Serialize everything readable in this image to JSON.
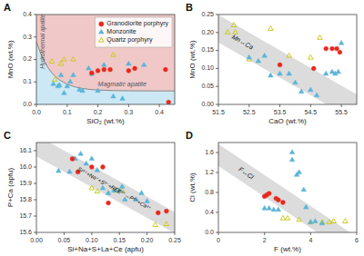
{
  "chart_data": [
    {
      "type": "scatter",
      "title": "A",
      "x_label": "SiO₂ (wt.%)",
      "y_label": "MnO (wt.%)",
      "xlim": [
        0,
        0.45
      ],
      "ylim": [
        0,
        0.4
      ],
      "xticks": [
        {
          "value": 0,
          "label": "0.0"
        },
        0.1,
        0.2,
        0.3,
        0.4
      ],
      "yticks": [
        {
          "value": 0,
          "label": "0.0"
        },
        0.1,
        0.2,
        0.3,
        0.4
      ],
      "legend": "upper right",
      "regions": [
        {
          "name": "Hydrothermal apatite",
          "color": "#f0c8c8"
        },
        {
          "name": "Magmatic apatite",
          "color": "#cce8f4"
        }
      ],
      "boundary": {
        "color": "#888888",
        "x": [
          0,
          0.0125,
          0.025,
          0.0375,
          0.05,
          0.0625,
          0.075,
          0.1,
          0.125,
          0.15,
          0.175,
          0.2,
          0.25,
          0.3,
          0.35,
          0.4,
          0.45
        ],
        "y": [
          0.28,
          0.2313,
          0.1934,
          0.1639,
          0.1409,
          0.123,
          0.1091,
          0.0898,
          0.0781,
          0.071,
          0.0666,
          0.064,
          0.0615,
          0.0605,
          0.0602,
          0.0601,
          0.06
        ]
      },
      "series": [
        {
          "name": "Granodiorite porphyry",
          "color": "#e8281e",
          "marker": "circle",
          "x": [
            0.18,
            0.2,
            0.22,
            0.24,
            0.3,
            0.32,
            0.42,
            0.43
          ],
          "values": [
            0.14,
            0.15,
            0.155,
            0.155,
            0.15,
            0.16,
            0.155,
            0.01
          ]
        },
        {
          "name": "Monzonite",
          "color": "#5ab4d8",
          "marker": "triangle",
          "x": [
            0.055,
            0.07,
            0.075,
            0.08,
            0.09,
            0.1,
            0.11,
            0.12,
            0.14,
            0.15,
            0.17,
            0.18,
            0.2,
            0.22,
            0.25,
            0.28,
            0.3,
            0.35
          ],
          "values": [
            0.09,
            0.08,
            0.085,
            0.13,
            0.05,
            0.08,
            0.1,
            0.13,
            0.065,
            0.06,
            0.16,
            0.135,
            0.06,
            0.175,
            0.035,
            0.025,
            0.18,
            0.175
          ]
        },
        {
          "name": "Quartz porphyry",
          "color": "#cccc22",
          "marker": "triangle-open",
          "x": [
            0.05,
            0.06,
            0.08,
            0.09,
            0.12,
            0.25
          ],
          "values": [
            0.19,
            0.11,
            0.18,
            0.2,
            0.2,
            0.22
          ]
        }
      ]
    },
    {
      "type": "scatter",
      "title": "B",
      "x_label": "CaO (wt.%)",
      "y_label": "MnO (wt.%)",
      "xlim": [
        51.5,
        56.0
      ],
      "ylim": [
        0,
        0.25
      ],
      "xticks": [
        51.5,
        52.5,
        53.5,
        54.5,
        55.5
      ],
      "yticks": [
        {
          "value": 0,
          "label": "0.00"
        },
        0.05,
        {
          "value": 0.1,
          "label": "0.10"
        },
        0.15,
        {
          "value": 0.2,
          "label": "0.20"
        },
        0.25
      ],
      "band": {
        "color": "#d3d3d3",
        "x": [
          51.5,
          56.0
        ],
        "lower": [
          0.1725,
          -0.048
        ],
        "upper": [
          0.2485,
          0.028
        ]
      },
      "annotations": [
        "Mn↔Ca"
      ],
      "series": [
        {
          "name": "Granodiorite porphyry",
          "color": "#e8281e",
          "marker": "circle",
          "x": [
            53.5,
            54.6,
            55.0,
            55.2,
            55.35,
            55.45
          ],
          "values": [
            0.11,
            0.1,
            0.155,
            0.155,
            0.155,
            0.145
          ]
        },
        {
          "name": "Monzonite",
          "color": "#5ab4d8",
          "marker": "triangle",
          "x": [
            52.5,
            52.8,
            53.0,
            53.2,
            53.5,
            53.8,
            54.0,
            54.2,
            54.5,
            54.7,
            55.0,
            55.2,
            55.3,
            55.4,
            55.5
          ],
          "values": [
            0.13,
            0.12,
            0.135,
            0.08,
            0.085,
            0.085,
            0.06,
            0.035,
            0.04,
            0.025,
            0.085,
            0.09,
            0.085,
            0.09,
            0.17
          ]
        },
        {
          "name": "Quartz porphyry",
          "color": "#cccc22",
          "marker": "triangle-open",
          "x": [
            51.8,
            52.0,
            52.05,
            52.5,
            53.2,
            53.8,
            54.5,
            54.8
          ],
          "values": [
            0.2,
            0.22,
            0.2,
            0.125,
            0.21,
            0.135,
            0.13,
            0.185
          ]
        }
      ]
    },
    {
      "type": "scatter",
      "title": "C",
      "x_label": "Si+Na+S+La+Ce (apfu)",
      "y_label": "P+Ca (apfu)",
      "xlim": [
        0,
        0.25
      ],
      "ylim": [
        15.6,
        16.15
      ],
      "xticks": [
        {
          "value": 0,
          "label": "0.00"
        },
        0.05,
        {
          "value": 0.1,
          "label": "0.10"
        },
        0.15,
        {
          "value": 0.2,
          "label": "0.20"
        },
        0.25
      ],
      "yticks": [
        15.6,
        15.7,
        15.8,
        15.9,
        {
          "value": 16.0,
          "label": "16.0"
        },
        16.1
      ],
      "band": {
        "color": "#d3d3d3",
        "x": [
          0,
          0.25
        ],
        "lower": [
          16.065,
          15.595
        ],
        "upper": [
          16.195,
          15.725
        ]
      },
      "annotations": [
        "Si⁴⁺+Na⁺+S²⁻+REE³⁺→P⁵⁺+Ca²⁺"
      ],
      "series": [
        {
          "name": "Granodiorite porphyry",
          "color": "#e8281e",
          "marker": "circle",
          "x": [
            0.065,
            0.075,
            0.1,
            0.12,
            0.13,
            0.22,
            0.235
          ],
          "values": [
            16.05,
            15.97,
            16.0,
            16.0,
            15.78,
            15.72,
            15.73
          ]
        },
        {
          "name": "Monzonite",
          "color": "#5ab4d8",
          "marker": "triangle",
          "x": [
            0.04,
            0.06,
            0.07,
            0.08,
            0.09,
            0.1,
            0.11,
            0.12,
            0.13,
            0.14,
            0.15,
            0.155,
            0.16,
            0.18,
            0.19,
            0.2
          ],
          "values": [
            15.975,
            15.97,
            16.05,
            16.08,
            16.02,
            16.05,
            15.98,
            15.87,
            15.84,
            15.855,
            15.855,
            15.88,
            15.8,
            15.8,
            15.84,
            15.79
          ]
        },
        {
          "name": "Quartz porphyry",
          "color": "#cccc22",
          "marker": "triangle-open",
          "x": [
            0.1,
            0.11,
            0.145,
            0.155,
            0.215,
            0.235
          ],
          "values": [
            15.87,
            15.85,
            15.855,
            15.855,
            15.645,
            15.65
          ]
        }
      ]
    },
    {
      "type": "scatter",
      "title": "D",
      "x_label": "F (wt.%)",
      "y_label": "Cl (wt.%)",
      "xlim": [
        0,
        6.0
      ],
      "ylim": [
        0,
        1.8
      ],
      "xticks": [
        0,
        2,
        4,
        6
      ],
      "yticks": [
        {
          "value": 0,
          "label": "0.0"
        },
        0.4,
        0.8,
        1.2,
        1.6
      ],
      "band": {
        "color": "#d3d3d3",
        "x": [
          0,
          6.0
        ],
        "lower": [
          1.33,
          -0.53
        ],
        "upper": [
          1.77,
          -0.09
        ]
      },
      "annotations": [
        "F↔Cl"
      ],
      "series": [
        {
          "name": "Granodiorite porphyry",
          "color": "#e8281e",
          "marker": "circle",
          "x": [
            2.0,
            2.1,
            2.2,
            2.5,
            2.6,
            2.8
          ],
          "values": [
            0.72,
            0.75,
            0.78,
            0.68,
            0.65,
            0.6
          ]
        },
        {
          "name": "Monzonite",
          "color": "#5ab4d8",
          "marker": "triangle",
          "x": [
            2.0,
            2.2,
            2.4,
            2.6,
            3.2,
            3.2,
            3.4,
            3.5,
            3.7,
            3.8,
            4.0,
            4.2,
            4.5
          ],
          "values": [
            0.48,
            0.48,
            0.45,
            0.45,
            1.6,
            1.45,
            1.15,
            1.2,
            0.85,
            0.5,
            0.2,
            0.22,
            0.18
          ]
        },
        {
          "name": "Quartz porphyry",
          "color": "#cccc22",
          "marker": "triangle-open",
          "x": [
            2.8,
            3.0,
            3.5,
            4.0,
            4.5,
            4.8,
            5.0,
            5.5
          ],
          "values": [
            0.28,
            0.28,
            0.25,
            0.2,
            0.2,
            0.2,
            0.22,
            0.22
          ]
        }
      ]
    }
  ]
}
